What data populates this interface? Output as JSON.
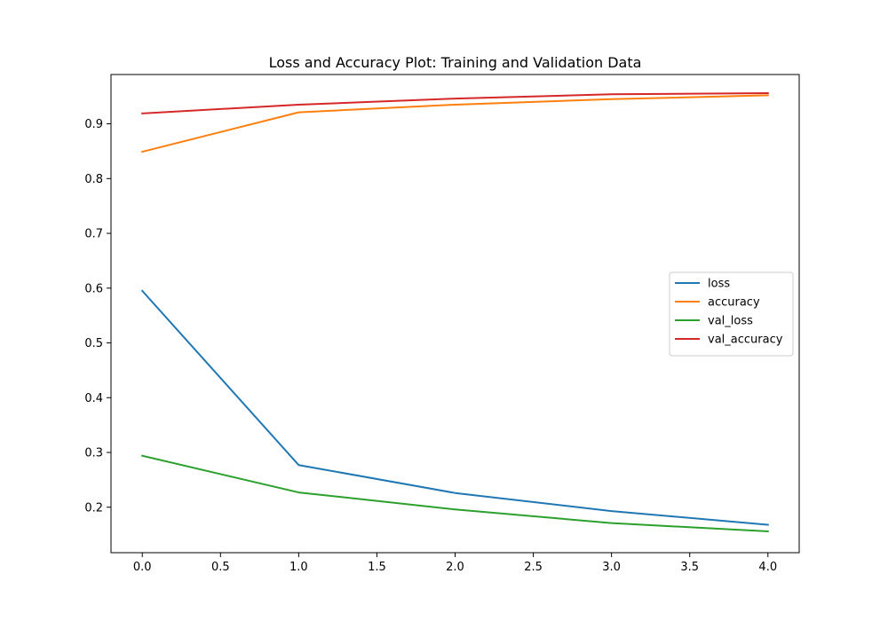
{
  "chart_data": {
    "type": "line",
    "title": "Loss and Accuracy Plot: Training and Validation Data",
    "xlabel": "",
    "ylabel": "",
    "x": [
      0,
      1,
      2,
      3,
      4
    ],
    "xlim": [
      -0.2,
      4.2
    ],
    "ylim": [
      0.117,
      0.99
    ],
    "xticks": [
      0.0,
      0.5,
      1.0,
      1.5,
      2.0,
      2.5,
      3.0,
      3.5,
      4.0
    ],
    "xtick_labels": [
      "0.0",
      "0.5",
      "1.0",
      "1.5",
      "2.0",
      "2.5",
      "3.0",
      "3.5",
      "4.0"
    ],
    "yticks": [
      0.2,
      0.3,
      0.4,
      0.5,
      0.6,
      0.7,
      0.8,
      0.9
    ],
    "ytick_labels": [
      "0.2",
      "0.3",
      "0.4",
      "0.5",
      "0.6",
      "0.7",
      "0.8",
      "0.9"
    ],
    "grid": false,
    "legend_position": "center-right",
    "series": [
      {
        "name": "loss",
        "color": "#1f77b4",
        "values": [
          0.595,
          0.277,
          0.226,
          0.193,
          0.168
        ]
      },
      {
        "name": "accuracy",
        "color": "#ff7f0e",
        "values": [
          0.849,
          0.921,
          0.935,
          0.945,
          0.952
        ]
      },
      {
        "name": "val_loss",
        "color": "#2ca02c",
        "values": [
          0.294,
          0.227,
          0.196,
          0.171,
          0.156
        ]
      },
      {
        "name": "val_accuracy",
        "color": "#d62728",
        "values": [
          0.919,
          0.935,
          0.946,
          0.954,
          0.956
        ]
      }
    ]
  }
}
